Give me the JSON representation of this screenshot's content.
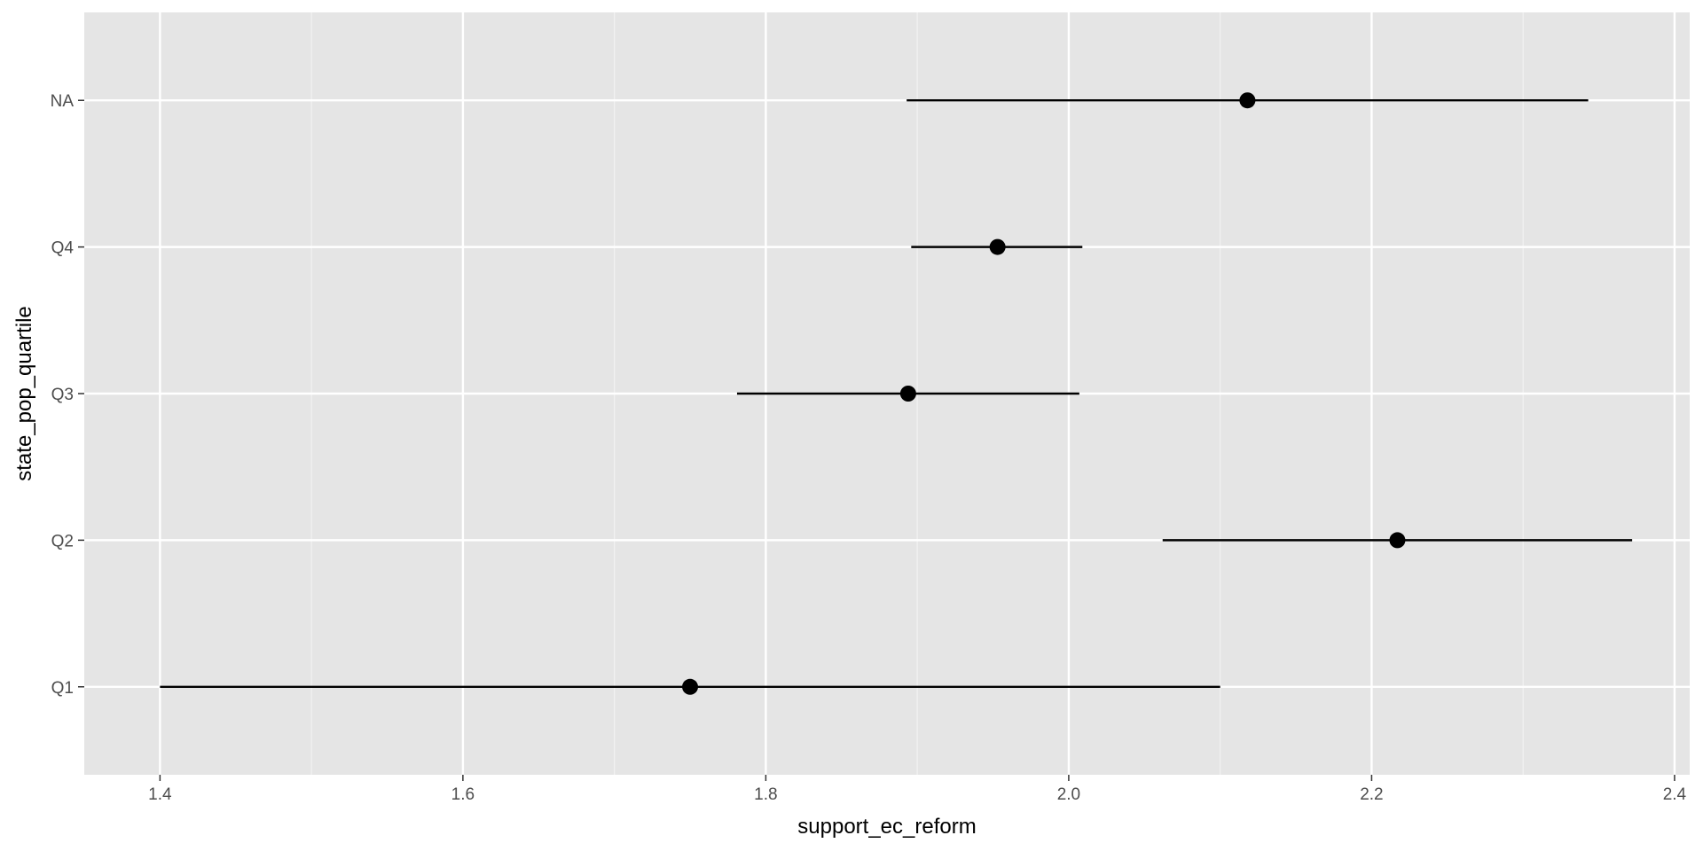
{
  "chart_data": {
    "type": "pointrange",
    "xlabel": "support_ec_reform",
    "ylabel": "state_pop_quartile",
    "xlim": [
      1.35,
      2.41
    ],
    "x_ticks": [
      1.4,
      1.6,
      1.8,
      2.0,
      2.2,
      2.4
    ],
    "x_tick_labels": [
      "1.4",
      "1.6",
      "1.8",
      "2.0",
      "2.2",
      "2.4"
    ],
    "categories": [
      "Q1",
      "Q2",
      "Q3",
      "Q4",
      "NA"
    ],
    "points": [
      {
        "category": "Q1",
        "estimate": 1.75,
        "low": 1.4,
        "high": 2.1
      },
      {
        "category": "Q2",
        "estimate": 2.217,
        "low": 2.062,
        "high": 2.372
      },
      {
        "category": "Q3",
        "estimate": 1.894,
        "low": 1.781,
        "high": 2.007
      },
      {
        "category": "Q4",
        "estimate": 1.953,
        "low": 1.896,
        "high": 2.009
      },
      {
        "category": "NA",
        "estimate": 2.118,
        "low": 1.893,
        "high": 2.343
      }
    ],
    "grid": true,
    "legend": "none",
    "colors": {
      "panel_background": "#e5e5e5",
      "grid_major": "#ffffff",
      "grid_minor": "#f2f2f2",
      "point": "#000000",
      "tick_label": "#4d4d4d",
      "tick_mark": "#333333"
    }
  }
}
